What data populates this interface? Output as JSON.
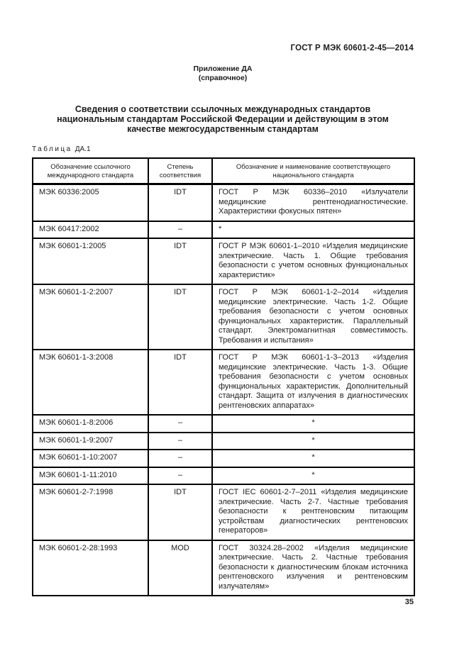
{
  "header": {
    "code": "ГОСТ Р МЭК 60601-2-45—2014"
  },
  "annex": {
    "lines": [
      "Приложение ДА",
      "(справочное)"
    ]
  },
  "title": {
    "full": "Сведения о соответствии ссылочных международных стандартов национальным стандартам Российской Федерации и действующим в этом качестве межгосударственным стандартам",
    "lines": [
      "Сведения о соответствии ссылочных международных стандартов",
      "национальным стандартам Российской Федерации и действующим в этом",
      "качестве межгосударственным стандартам"
    ]
  },
  "table": {
    "caption": {
      "label": "Таблица",
      "number": "ДА.1"
    },
    "columns": [
      "Обозначение ссылочного международного стандарта",
      "Степень соответствия",
      "Обозначение и наименование соответствующего национального стандарта"
    ],
    "rows": [
      {
        "ref": "МЭК 60336:2005",
        "degree": "IDT",
        "national": "ГОСТ Р МЭК 60336–2010 «Излучатели медицинские рентгенодиагностические. Характеристики фокусных пятен»",
        "align": "justify"
      },
      {
        "ref": "МЭК 60417:2002",
        "degree": "–",
        "national": "*",
        "align": "left"
      },
      {
        "ref": "МЭК 60601-1:2005",
        "degree": "IDT",
        "national": "ГОСТ Р МЭК 60601-1–2010 «Изделия медицинские электрические. Часть 1. Общие требования безопасности с учетом основных функциональных характеристик»",
        "align": "justify"
      },
      {
        "ref": "МЭК 60601-1-2:2007",
        "degree": "IDT",
        "national": "ГОСТ Р МЭК 60601-1-2–2014 «Изделия медицинские электрические. Часть 1-2. Общие требования безопасности с учетом основных функциональных характеристик. Параллельный стандарт. Электромагнитная совместимость. Требования и испытания»",
        "align": "justify"
      },
      {
        "ref": "МЭК 60601-1-3:2008",
        "degree": "IDT",
        "national": "ГОСТ Р МЭК 60601-1-3–2013 «Изделия медицинские электрические. Часть 1-3. Общие требования безопасности с учетом основных функциональных характеристик. Дополнительный стандарт. Защита от излучения в диагностических рентгеновских аппаратах»",
        "align": "justify"
      },
      {
        "ref": "МЭК 60601-1-8:2006",
        "degree": "–",
        "national": "*",
        "align": "center"
      },
      {
        "ref": "МЭК 60601-1-9:2007",
        "degree": "–",
        "national": "*",
        "align": "center"
      },
      {
        "ref": "МЭК 60601-1-10:2007",
        "degree": "–",
        "national": "*",
        "align": "center"
      },
      {
        "ref": "МЭК 60601-1-11:2010",
        "degree": "–",
        "national": "*",
        "align": "center"
      },
      {
        "ref": "МЭК 60601-2-7:1998",
        "degree": "IDT",
        "national": "ГОСТ IEC 60601-2-7–2011 «Изделия медицинские электрические. Часть 2-7. Частные требования безопасности к рентгеновским питающим устройствам диагностических рентгеновских генераторов»",
        "align": "justify"
      },
      {
        "ref": "МЭК 60601-2-28:1993",
        "degree": "MOD",
        "national": "ГОСТ 30324.28–2002 «Изделия медицинские электрические. Часть 2. Частные требования безопасности к диагностическим блокам источника рентгеновского излучения и рентгеновским излучателям»",
        "align": "justify"
      }
    ]
  },
  "footer": {
    "page_number": "35"
  }
}
